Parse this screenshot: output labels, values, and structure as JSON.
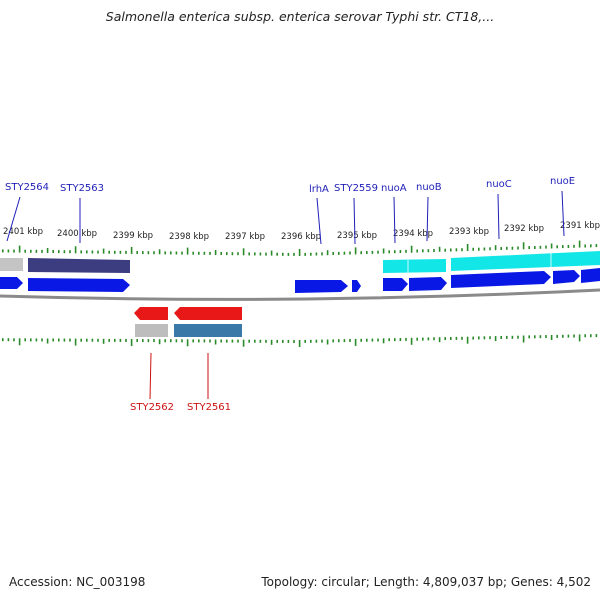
{
  "title": "Salmonella enterica subsp. enterica serovar Typhi str. CT18,...",
  "footer": {
    "accession": "Accession: NC_003198",
    "summary": "Topology: circular; Length: 4,809,037 bp; Genes: 4,502"
  },
  "colors": {
    "label_blue": "#1f1fb8",
    "label_red": "#cc1111",
    "tick_green": "#2a8a2a",
    "backbone": "#8a8a8a",
    "gene_blue": "#0a18e6",
    "gene_red": "#e81818",
    "gene_cyan": "#12e6e6",
    "gene_navy": "#3c3c80",
    "gene_steel": "#3a78a8",
    "gene_grey": "#bdbdbd"
  },
  "ruler_labels": [
    "2401 kbp",
    "2400 kbp",
    "2399 kbp",
    "2398 kbp",
    "2397 kbp",
    "2396 kbp",
    "2395 kbp",
    "2394 kbp",
    "2393 kbp",
    "2392 kbp",
    "2391 kbp"
  ],
  "top_genes": [
    "STY2564",
    "STY2563",
    "lrhA",
    "STY2559",
    "nuoA",
    "nuoB",
    "nuoC",
    "nuoE"
  ],
  "bottom_genes": [
    "STY2562",
    "STY2561"
  ]
}
